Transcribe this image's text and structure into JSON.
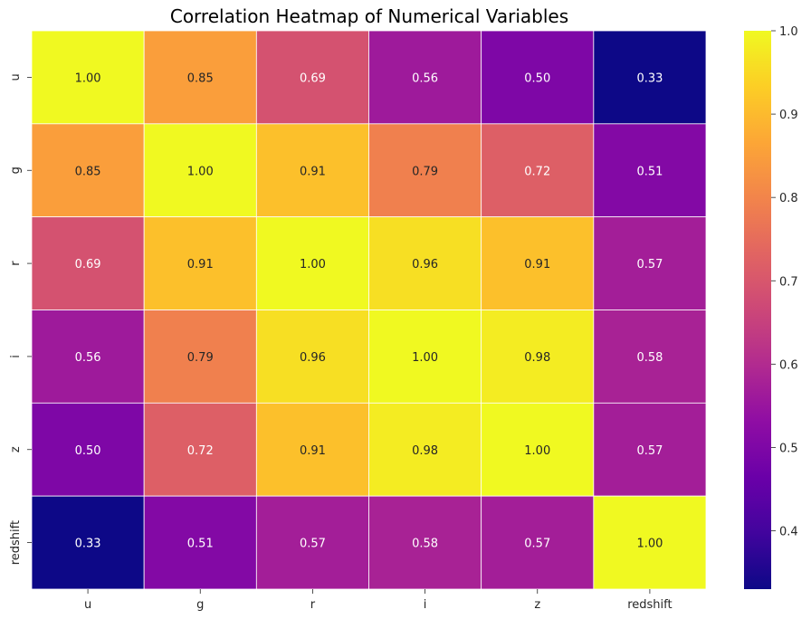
{
  "chart_data": {
    "type": "heatmap",
    "title": "Correlation Heatmap of Numerical Variables",
    "xlabel": "",
    "ylabel": "",
    "x_categories": [
      "u",
      "g",
      "r",
      "i",
      "z",
      "redshift"
    ],
    "y_categories": [
      "u",
      "g",
      "r",
      "i",
      "z",
      "redshift"
    ],
    "values": [
      [
        1.0,
        0.85,
        0.69,
        0.56,
        0.5,
        0.33
      ],
      [
        0.85,
        1.0,
        0.91,
        0.79,
        0.72,
        0.51
      ],
      [
        0.69,
        0.91,
        1.0,
        0.96,
        0.91,
        0.57
      ],
      [
        0.56,
        0.79,
        0.96,
        1.0,
        0.98,
        0.58
      ],
      [
        0.5,
        0.72,
        0.91,
        0.98,
        1.0,
        0.57
      ],
      [
        0.33,
        0.51,
        0.57,
        0.58,
        0.57,
        1.0
      ]
    ],
    "value_format": "0.00",
    "colormap": "plasma",
    "color_range": [
      0.33,
      1.0
    ],
    "colorbar_ticks": [
      "0.4",
      "0.5",
      "0.6",
      "0.7",
      "0.8",
      "0.9",
      "1.0"
    ],
    "colorbar_tick_values": [
      0.4,
      0.5,
      0.6,
      0.7,
      0.8,
      0.9,
      1.0
    ],
    "grid_line_color": "#ffffff",
    "light_text_color": "#ffffff",
    "dark_text_color": "#262626"
  }
}
